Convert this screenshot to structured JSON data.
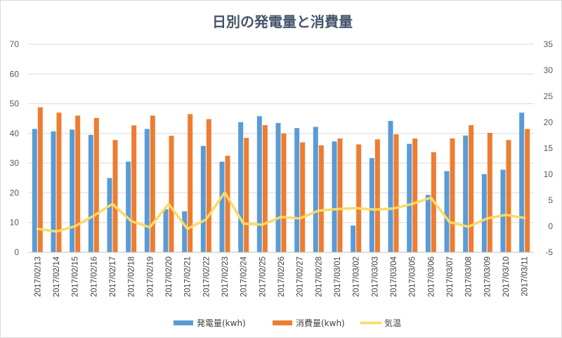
{
  "chart_data": {
    "type": "bar",
    "title": "日別の発電量と消費量",
    "xlabel": "",
    "ylabel": "",
    "y_left_lim": [
      0,
      70
    ],
    "y_left_ticks": [
      "0",
      "10",
      "20",
      "30",
      "40",
      "50",
      "60",
      "70"
    ],
    "y_right_lim": [
      -5,
      35
    ],
    "y_right_ticks": [
      "-5",
      "0",
      "5",
      "10",
      "15",
      "20",
      "25",
      "30",
      "35"
    ],
    "grid": true,
    "legend_position": "bottom",
    "categories": [
      "2017/02/13",
      "2017/02/14",
      "2017/02/15",
      "2017/02/16",
      "2017/02/17",
      "2017/02/18",
      "2017/02/19",
      "2017/02/20",
      "2017/02/21",
      "2017/02/22",
      "2017/02/23",
      "2017/02/24",
      "2017/02/25",
      "2017/02/26",
      "2017/02/27",
      "2017/02/28",
      "2017/03/01",
      "2017/03/02",
      "2017/03/03",
      "2017/03/04",
      "2017/03/05",
      "2017/03/06",
      "2017/03/07",
      "2017/03/08",
      "2017/03/09",
      "2017/03/10",
      "2017/03/11"
    ],
    "series": [
      {
        "name": "発電量(kwh)",
        "type": "bar",
        "axis": "left",
        "color": "#5b9bd5",
        "values": [
          41.5,
          40.7,
          41.3,
          39.5,
          25.0,
          30.5,
          41.5,
          14.5,
          13.8,
          35.8,
          30.5,
          43.8,
          45.8,
          43.5,
          41.8,
          42.2,
          37.3,
          9.0,
          31.7,
          44.2,
          36.5,
          19.3,
          27.3,
          39.3,
          26.3,
          27.8,
          47.0
        ]
      },
      {
        "name": "消費量(kwh)",
        "type": "bar",
        "axis": "left",
        "color": "#ed7d31",
        "values": [
          48.8,
          47.0,
          46.0,
          45.2,
          37.8,
          42.7,
          46.0,
          39.2,
          46.5,
          44.8,
          32.5,
          38.5,
          42.8,
          40.0,
          37.0,
          36.0,
          38.3,
          36.3,
          38.0,
          39.7,
          38.3,
          33.7,
          38.3,
          42.8,
          40.2,
          37.8,
          41.5
        ]
      },
      {
        "name": "気温",
        "type": "line",
        "axis": "right",
        "color": "#ffd966",
        "values": [
          -0.5,
          -1.0,
          0.0,
          2.0,
          4.3,
          1.0,
          -0.2,
          4.3,
          -0.5,
          1.3,
          6.5,
          0.5,
          0.3,
          1.8,
          1.5,
          3.0,
          3.3,
          3.5,
          3.2,
          3.4,
          4.3,
          5.5,
          0.8,
          -0.1,
          1.5,
          2.2,
          1.6
        ]
      }
    ]
  }
}
